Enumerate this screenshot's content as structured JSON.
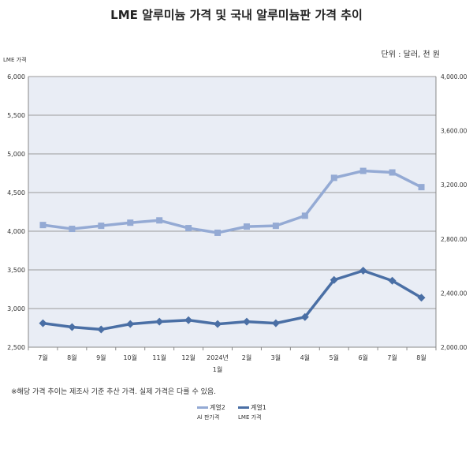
{
  "title": "LME 알루미늄 가격 및 국내 알루미늄판 가격 추이",
  "unit_note": "단위 : 달러, 천 원",
  "left_axis_label": "LME 가격",
  "footnote": "※해당 가격 추이는 제조사 기준 추산 가격. 실제 가격은 다를 수 있음.",
  "colors": {
    "series1": "#4a6fa5",
    "series2": "#94aad4",
    "plot_bg": "#e9edf5",
    "grid": "#9a9a9a"
  },
  "chart_data": {
    "type": "line",
    "categories": [
      "7월",
      "8월",
      "9월",
      "10월",
      "11월",
      "12월",
      "2024년\n1월",
      "2월",
      "3월",
      "4월",
      "5월",
      "6월",
      "7월",
      "8월"
    ],
    "ylim": [
      2500,
      6000
    ],
    "y2lim": [
      2000,
      4000
    ],
    "yticks": [
      "2,500",
      "3,000",
      "3,500",
      "4,000",
      "4,500",
      "5,000",
      "5,500",
      "6,000"
    ],
    "y2ticks": [
      "2,000.00",
      "2,400.00",
      "2,800.00",
      "3,200.00",
      "3,600.00",
      "4,000.00"
    ],
    "grid": true,
    "legend_position": "bottom",
    "series": [
      {
        "name": "계열2",
        "sublabel": "Al 판가격",
        "axis": "left",
        "values": [
          4080,
          4030,
          4070,
          4110,
          4140,
          4040,
          3980,
          4060,
          4070,
          4200,
          4690,
          4780,
          4760,
          4570
        ]
      },
      {
        "name": "계열1",
        "sublabel": "LME 가격",
        "axis": "left",
        "values": [
          2810,
          2760,
          2730,
          2800,
          2830,
          2850,
          2800,
          2830,
          2810,
          2890,
          3370,
          3490,
          3360,
          3140
        ]
      }
    ]
  }
}
